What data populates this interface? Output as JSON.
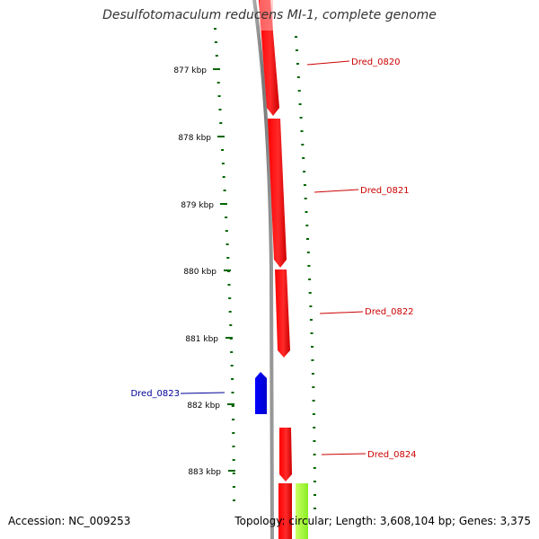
{
  "title": "Desulfotomaculum reducens MI-1, complete genome",
  "footer": {
    "accession": "Accession: NC_009253",
    "summary": "Topology: circular; Length: 3,608,104 bp; Genes: 3,375"
  },
  "ticks": [
    "877 kbp",
    "878 kbp",
    "879 kbp",
    "880 kbp",
    "881 kbp",
    "882 kbp",
    "883 kbp"
  ],
  "genes": [
    {
      "label": "Dred_0820",
      "strand": "forward"
    },
    {
      "label": "Dred_0821",
      "strand": "forward"
    },
    {
      "label": "Dred_0822",
      "strand": "forward"
    },
    {
      "label": "Dred_0823",
      "strand": "reverse"
    },
    {
      "label": "Dred_0824",
      "strand": "forward"
    }
  ],
  "colors": {
    "forward_gene": "#ff0000",
    "reverse_gene": "#0000ff",
    "forward_label": "#cc0000",
    "reverse_label": "#000099",
    "ticks": "#006600",
    "backbone": "#888888",
    "feature_yellowgreen": "#aaff44"
  }
}
